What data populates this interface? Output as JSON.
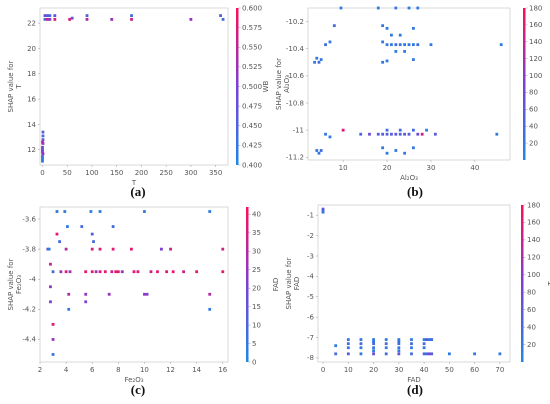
{
  "chart_data": [
    {
      "type": "scatter",
      "panel_label": "(a)",
      "xlabel": "T",
      "ylabel_lines": [
        "SHAP value for",
        "T"
      ],
      "xlim": [
        -5,
        375
      ],
      "ylim": [
        10.8,
        23.2
      ],
      "xticks": [
        0,
        50,
        100,
        150,
        200,
        250,
        300,
        350
      ],
      "yticks": [
        12,
        14,
        16,
        18,
        20,
        22
      ],
      "colorbar": {
        "label": "WB",
        "min": 0.4,
        "max": 0.6,
        "ticks": [
          "0.400",
          "0.425",
          "0.450",
          "0.475",
          "0.500",
          "0.525",
          "0.550",
          "0.575",
          "0.600"
        ]
      },
      "points": [
        [
          0,
          11.3,
          0.1
        ],
        [
          0,
          11.5,
          0.2
        ],
        [
          0,
          11.8,
          0.4
        ],
        [
          0,
          12.0,
          0.5
        ],
        [
          0,
          12.2,
          0.4
        ],
        [
          1,
          12.5,
          0.6
        ],
        [
          1,
          12.8,
          0.4
        ],
        [
          1,
          13.1,
          0.2
        ],
        [
          1,
          13.4,
          0.3
        ],
        [
          0,
          11.1,
          0.1
        ],
        [
          1,
          11.7,
          0.6
        ],
        [
          0,
          12.6,
          0.7
        ],
        [
          5,
          22.3,
          0.2
        ],
        [
          5,
          22.6,
          0.4
        ],
        [
          10,
          22.3,
          0.8
        ],
        [
          10,
          22.6,
          0.3
        ],
        [
          15,
          22.3,
          0.5
        ],
        [
          15,
          22.6,
          0.2
        ],
        [
          25,
          22.3,
          0.9
        ],
        [
          25,
          22.6,
          0.4
        ],
        [
          55,
          22.3,
          0.9
        ],
        [
          60,
          22.4,
          0.4
        ],
        [
          90,
          22.3,
          0.7
        ],
        [
          90,
          22.6,
          0.3
        ],
        [
          140,
          22.3,
          0.6
        ],
        [
          180,
          22.3,
          0.8
        ],
        [
          180,
          22.6,
          0.2
        ],
        [
          300,
          22.3,
          0.6
        ],
        [
          360,
          22.6,
          0.3
        ],
        [
          365,
          22.3,
          0.2
        ]
      ]
    },
    {
      "type": "scatter",
      "panel_label": "(b)",
      "xlabel": "Al₂O₃",
      "ylabel_lines": [
        "SHAP value for",
        "Al₂O₃"
      ],
      "xlim": [
        2,
        48
      ],
      "ylim": [
        -11.22,
        -10.1
      ],
      "xticks": [
        10,
        20,
        30,
        40
      ],
      "yticks": [
        -10.2,
        -10.4,
        -10.6,
        -10.8,
        -11.0,
        -11.2
      ],
      "colorbar": {
        "label": "T",
        "min": 0,
        "max": 180,
        "ticks": [
          "20",
          "40",
          "60",
          "80",
          "100",
          "120",
          "140",
          "160",
          "180"
        ]
      },
      "points": [
        [
          3.5,
          -10.5,
          0.1
        ],
        [
          4,
          -10.47,
          0.1
        ],
        [
          4.5,
          -10.5,
          0.2
        ],
        [
          5,
          -10.48,
          0.1
        ],
        [
          6,
          -10.37,
          0.2
        ],
        [
          7,
          -10.35,
          0.1
        ],
        [
          8,
          -10.23,
          0.2
        ],
        [
          9.5,
          -10.1,
          0.1
        ],
        [
          4,
          -11.15,
          0.1
        ],
        [
          4.5,
          -11.17,
          0.1
        ],
        [
          5,
          -11.15,
          0.2
        ],
        [
          6,
          -11.03,
          0.1
        ],
        [
          7,
          -11.05,
          0.1
        ],
        [
          10,
          -11.0,
          0.9
        ],
        [
          14,
          -11.03,
          0.2
        ],
        [
          16,
          -11.03,
          0.4
        ],
        [
          18,
          -11.03,
          0.3
        ],
        [
          19,
          -11.03,
          0.3
        ],
        [
          20,
          -11.03,
          0.3
        ],
        [
          21,
          -11.03,
          0.3
        ],
        [
          22,
          -11.03,
          0.3
        ],
        [
          23,
          -11.03,
          0.3
        ],
        [
          24,
          -11.03,
          0.3
        ],
        [
          25,
          -11.03,
          0.3
        ],
        [
          20,
          -11.0,
          0.2
        ],
        [
          23,
          -11.0,
          0.2
        ],
        [
          26,
          -11.0,
          0.2
        ],
        [
          19,
          -11.13,
          0.1
        ],
        [
          20,
          -11.17,
          0.1
        ],
        [
          22,
          -11.15,
          0.1
        ],
        [
          24,
          -11.17,
          0.1
        ],
        [
          26,
          -11.13,
          0.1
        ],
        [
          27,
          -11.03,
          0.4
        ],
        [
          28,
          -11.03,
          0.8
        ],
        [
          29,
          -11.0,
          0.1
        ],
        [
          31,
          -11.03,
          0.3
        ],
        [
          45,
          -11.03,
          0.1
        ],
        [
          18,
          -10.1,
          0.1
        ],
        [
          22,
          -10.1,
          0.1
        ],
        [
          25,
          -10.1,
          0.1
        ],
        [
          27,
          -10.1,
          0.1
        ],
        [
          19,
          -10.23,
          0.1
        ],
        [
          20,
          -10.25,
          0.1
        ],
        [
          21,
          -10.3,
          0.1
        ],
        [
          23,
          -10.3,
          0.1
        ],
        [
          26,
          -10.25,
          0.1
        ],
        [
          19,
          -10.35,
          0.1
        ],
        [
          20,
          -10.37,
          0.1
        ],
        [
          21,
          -10.37,
          0.1
        ],
        [
          22,
          -10.37,
          0.2
        ],
        [
          23,
          -10.37,
          0.1
        ],
        [
          24,
          -10.37,
          0.1
        ],
        [
          25,
          -10.37,
          0.1
        ],
        [
          26,
          -10.37,
          0.1
        ],
        [
          27,
          -10.37,
          0.2
        ],
        [
          22,
          -10.42,
          0.1
        ],
        [
          24,
          -10.42,
          0.1
        ],
        [
          19,
          -10.5,
          0.1
        ],
        [
          20,
          -10.49,
          0.1
        ],
        [
          26,
          -10.48,
          0.1
        ],
        [
          30,
          -10.37,
          0.1
        ],
        [
          46,
          -10.37,
          0.1
        ]
      ]
    },
    {
      "type": "scatter",
      "panel_label": "(c)",
      "xlabel": "Fe₂O₃",
      "ylabel_lines": [
        "SHAP value for",
        "Fe₂O₃"
      ],
      "xlim": [
        2,
        16.4
      ],
      "ylim": [
        -4.55,
        -3.52
      ],
      "xticks": [
        2,
        4,
        6,
        8,
        10,
        12,
        14,
        16
      ],
      "yticks": [
        -3.6,
        -3.8,
        -4.0,
        -4.2,
        -4.4
      ],
      "colorbar": {
        "label": "FAD",
        "min": 0,
        "max": 42,
        "ticks": [
          "0",
          "5",
          "10",
          "15",
          "20",
          "25",
          "30",
          "35",
          "40"
        ]
      },
      "points": [
        [
          2.6,
          -3.8,
          0.3
        ],
        [
          2.8,
          -3.9,
          0.8
        ],
        [
          2.8,
          -4.05,
          0.6
        ],
        [
          2.8,
          -4.15,
          0.5
        ],
        [
          2.7,
          -3.8,
          0.1
        ],
        [
          3.0,
          -3.95,
          0.2
        ],
        [
          3.0,
          -4.3,
          0.9
        ],
        [
          3.0,
          -4.4,
          0.6
        ],
        [
          3.0,
          -4.5,
          0.1
        ],
        [
          3.3,
          -3.55,
          0.1
        ],
        [
          3.3,
          -3.7,
          0.9
        ],
        [
          3.5,
          -3.75,
          0.2
        ],
        [
          3.6,
          -3.95,
          0.6
        ],
        [
          3.9,
          -3.55,
          0.1
        ],
        [
          4,
          -3.8,
          0.7
        ],
        [
          4,
          -3.95,
          0.9
        ],
        [
          4.2,
          -4.1,
          0.7
        ],
        [
          4.2,
          -4.2,
          0.1
        ],
        [
          4.1,
          -3.65,
          0.1
        ],
        [
          4.3,
          -3.95,
          0.6
        ],
        [
          5.2,
          -3.65,
          0.2
        ],
        [
          5.5,
          -3.95,
          0.9
        ],
        [
          5.5,
          -4.1,
          0.6
        ],
        [
          5.5,
          -4.15,
          0.5
        ],
        [
          5.9,
          -3.55,
          0.1
        ],
        [
          6,
          -3.7,
          0.3
        ],
        [
          6,
          -3.8,
          0.8
        ],
        [
          6,
          -3.95,
          0.9
        ],
        [
          6.1,
          -3.75,
          0.2
        ],
        [
          6.3,
          -3.95,
          0.6
        ],
        [
          6.6,
          -3.55,
          0.1
        ],
        [
          6.6,
          -3.8,
          0.9
        ],
        [
          6.6,
          -3.95,
          0.9
        ],
        [
          7,
          -3.95,
          0.9
        ],
        [
          7.3,
          -4.1,
          0.6
        ],
        [
          7.5,
          -3.95,
          0.8
        ],
        [
          7.6,
          -3.65,
          0.2
        ],
        [
          7.6,
          -3.8,
          0.9
        ],
        [
          7.8,
          -3.95,
          0.9
        ],
        [
          8,
          -3.95,
          0.9
        ],
        [
          8.3,
          -3.95,
          0.6
        ],
        [
          9,
          -3.8,
          0.9
        ],
        [
          9.2,
          -3.95,
          0.9
        ],
        [
          9.5,
          -3.95,
          0.9
        ],
        [
          10,
          -3.55,
          0.1
        ],
        [
          10,
          -4.1,
          0.6
        ],
        [
          10.2,
          -4.1,
          0.5
        ],
        [
          10.5,
          -3.95,
          0.8
        ],
        [
          11,
          -3.95,
          0.9
        ],
        [
          11.3,
          -3.8,
          0.5
        ],
        [
          11.7,
          -3.95,
          0.9
        ],
        [
          12,
          -3.8,
          0.8
        ],
        [
          12.2,
          -3.95,
          0.9
        ],
        [
          13,
          -3.95,
          0.8
        ],
        [
          14,
          -3.95,
          0.9
        ],
        [
          15,
          -3.55,
          0.1
        ],
        [
          15,
          -4.1,
          0.7
        ],
        [
          15,
          -4.2,
          0.1
        ],
        [
          16,
          -3.8,
          0.8
        ],
        [
          16,
          -3.95,
          0.9
        ]
      ]
    },
    {
      "type": "scatter",
      "panel_label": "(d)",
      "xlabel": "FAD",
      "ylabel_lines": [
        "SHAP value for",
        "FAD"
      ],
      "xlim": [
        -2,
        74
      ],
      "ylim": [
        -8.2,
        -0.5
      ],
      "xticks": [
        0,
        10,
        20,
        30,
        40,
        50,
        60,
        70
      ],
      "yticks": [
        -1,
        -2,
        -3,
        -4,
        -5,
        -6,
        -7,
        -8
      ],
      "colorbar": {
        "label": "T",
        "min": 0,
        "max": 180,
        "ticks": [
          "20",
          "40",
          "60",
          "80",
          "100",
          "120",
          "140",
          "160",
          "180"
        ]
      },
      "points": [
        [
          0,
          -0.75,
          0.1
        ],
        [
          0,
          -0.85,
          0.2
        ],
        [
          0,
          -0.8,
          0.1
        ],
        [
          0,
          -0.7,
          0.3
        ],
        [
          5,
          -7.4,
          0.1
        ],
        [
          5,
          -7.8,
          0.2
        ],
        [
          10,
          -7.1,
          0.1
        ],
        [
          10,
          -7.3,
          0.2
        ],
        [
          10,
          -7.5,
          0.1
        ],
        [
          10,
          -7.8,
          0.3
        ],
        [
          15,
          -7.1,
          0.1
        ],
        [
          15,
          -7.3,
          0.2
        ],
        [
          15,
          -7.5,
          0.1
        ],
        [
          15,
          -7.8,
          0.1
        ],
        [
          20,
          -7.1,
          0.1
        ],
        [
          20,
          -7.2,
          0.1
        ],
        [
          20,
          -7.3,
          0.2
        ],
        [
          20,
          -7.5,
          0.1
        ],
        [
          20,
          -7.65,
          0.1
        ],
        [
          20,
          -7.8,
          0.4
        ],
        [
          25,
          -7.1,
          0.1
        ],
        [
          25,
          -7.3,
          0.2
        ],
        [
          25,
          -7.5,
          0.1
        ],
        [
          25,
          -7.8,
          0.2
        ],
        [
          30,
          -7.1,
          0.1
        ],
        [
          30,
          -7.2,
          0.1
        ],
        [
          30,
          -7.3,
          0.2
        ],
        [
          30,
          -7.5,
          0.1
        ],
        [
          30,
          -7.65,
          0.1
        ],
        [
          30,
          -7.8,
          0.4
        ],
        [
          35,
          -7.1,
          0.1
        ],
        [
          35,
          -7.3,
          0.2
        ],
        [
          35,
          -7.5,
          0.1
        ],
        [
          35,
          -7.8,
          0.2
        ],
        [
          40,
          -7.1,
          0.1
        ],
        [
          40,
          -7.3,
          0.2
        ],
        [
          40,
          -7.5,
          0.1
        ],
        [
          40,
          -7.8,
          0.2
        ],
        [
          41,
          -7.1,
          0.3
        ],
        [
          42,
          -7.1,
          0.1
        ],
        [
          43,
          -7.1,
          0.2
        ],
        [
          41,
          -7.8,
          0.2
        ],
        [
          42,
          -7.8,
          0.5
        ],
        [
          43,
          -7.8,
          0.3
        ],
        [
          50,
          -7.8,
          0.1
        ],
        [
          60,
          -7.8,
          0.1
        ],
        [
          70,
          -7.8,
          0.1
        ]
      ]
    }
  ]
}
